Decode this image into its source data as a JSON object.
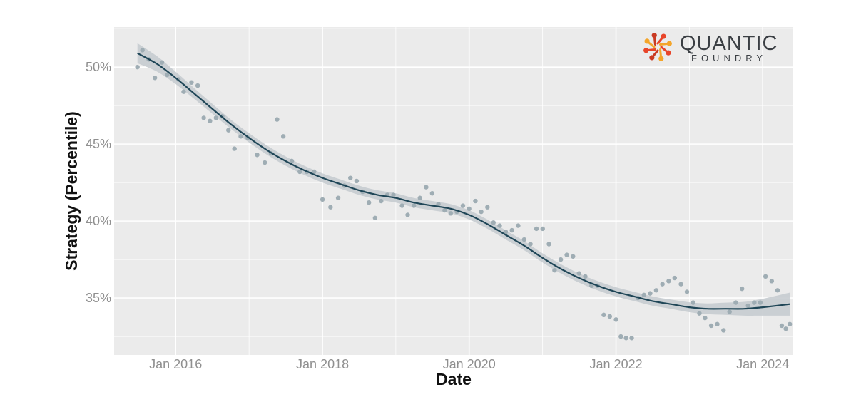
{
  "colors": {
    "panel": "#ebebeb",
    "grid": "#ffffff",
    "points": "#9fadb4",
    "line": "#1f4657",
    "ribbon": "#c7ccd0"
  },
  "logo": {
    "word": "QUANTIC",
    "sub": "FOUNDRY",
    "colors": [
      "#e8452a",
      "#f4a52a",
      "#c93a22"
    ]
  },
  "chart_data": {
    "type": "scatter",
    "title": "",
    "xlabel": "Date",
    "ylabel": "Strategy (Percentile)",
    "xlim": [
      "2015-03-01",
      "2024-06-01"
    ],
    "ylim": [
      31.3,
      52.6
    ],
    "x_ticks": [
      "2016-01-01",
      "2018-01-01",
      "2020-01-01",
      "2022-01-01",
      "2024-01-01"
    ],
    "x_tick_labels": [
      "Jan 2016",
      "Jan 2018",
      "Jan 2020",
      "Jan 2022",
      "Jan 2024"
    ],
    "y_ticks": [
      35,
      40,
      45,
      50
    ],
    "y_tick_labels": [
      "35%",
      "40%",
      "45%",
      "50%"
    ],
    "grid": true,
    "points": [
      [
        "2015-06-25",
        50.0
      ],
      [
        "2015-07-20",
        51.1
      ],
      [
        "2015-08-20",
        50.5
      ],
      [
        "2015-09-20",
        49.3
      ],
      [
        "2015-10-25",
        50.3
      ],
      [
        "2015-11-20",
        49.5
      ],
      [
        "2016-01-15",
        49.2
      ],
      [
        "2016-02-10",
        48.4
      ],
      [
        "2016-03-20",
        49.0
      ],
      [
        "2016-04-20",
        48.8
      ],
      [
        "2016-05-20",
        46.7
      ],
      [
        "2016-06-20",
        46.5
      ],
      [
        "2016-07-20",
        46.7
      ],
      [
        "2016-08-20",
        46.8
      ],
      [
        "2016-09-20",
        45.9
      ],
      [
        "2016-10-20",
        44.7
      ],
      [
        "2016-11-20",
        45.5
      ],
      [
        "2016-12-25",
        45.4
      ],
      [
        "2017-02-10",
        44.3
      ],
      [
        "2017-03-20",
        43.8
      ],
      [
        "2017-04-20",
        44.4
      ],
      [
        "2017-05-20",
        46.6
      ],
      [
        "2017-06-20",
        45.5
      ],
      [
        "2017-08-01",
        43.9
      ],
      [
        "2017-09-10",
        43.2
      ],
      [
        "2017-10-15",
        43.2
      ],
      [
        "2017-11-20",
        43.2
      ],
      [
        "2018-01-01",
        41.4
      ],
      [
        "2018-02-10",
        40.9
      ],
      [
        "2018-03-20",
        41.5
      ],
      [
        "2018-04-20",
        42.3
      ],
      [
        "2018-05-20",
        42.8
      ],
      [
        "2018-06-20",
        42.6
      ],
      [
        "2018-07-20",
        41.9
      ],
      [
        "2018-08-20",
        41.2
      ],
      [
        "2018-09-20",
        40.2
      ],
      [
        "2018-10-20",
        41.3
      ],
      [
        "2018-11-20",
        41.7
      ],
      [
        "2018-12-20",
        41.7
      ],
      [
        "2019-02-01",
        41.0
      ],
      [
        "2019-03-01",
        40.4
      ],
      [
        "2019-04-01",
        41.0
      ],
      [
        "2019-05-01",
        41.5
      ],
      [
        "2019-06-01",
        42.2
      ],
      [
        "2019-07-01",
        41.8
      ],
      [
        "2019-08-01",
        41.1
      ],
      [
        "2019-09-01",
        40.7
      ],
      [
        "2019-10-01",
        40.5
      ],
      [
        "2019-11-01",
        40.6
      ],
      [
        "2019-12-01",
        41.0
      ],
      [
        "2020-01-01",
        40.8
      ],
      [
        "2020-02-01",
        41.3
      ],
      [
        "2020-03-01",
        40.6
      ],
      [
        "2020-04-01",
        40.9
      ],
      [
        "2020-05-01",
        39.9
      ],
      [
        "2020-06-01",
        39.7
      ],
      [
        "2020-07-01",
        39.3
      ],
      [
        "2020-08-01",
        39.4
      ],
      [
        "2020-09-01",
        39.7
      ],
      [
        "2020-10-01",
        38.8
      ],
      [
        "2020-11-01",
        38.5
      ],
      [
        "2020-12-01",
        39.5
      ],
      [
        "2021-01-01",
        39.5
      ],
      [
        "2021-02-01",
        38.5
      ],
      [
        "2021-03-01",
        36.8
      ],
      [
        "2021-04-01",
        37.5
      ],
      [
        "2021-05-01",
        37.8
      ],
      [
        "2021-06-01",
        37.7
      ],
      [
        "2021-07-01",
        36.6
      ],
      [
        "2021-08-01",
        36.4
      ],
      [
        "2021-09-01",
        35.8
      ],
      [
        "2021-10-01",
        35.8
      ],
      [
        "2021-11-01",
        33.9
      ],
      [
        "2021-12-01",
        33.8
      ],
      [
        "2022-01-01",
        33.6
      ],
      [
        "2022-01-25",
        32.5
      ],
      [
        "2022-02-20",
        32.4
      ],
      [
        "2022-03-20",
        32.4
      ],
      [
        "2022-04-20",
        35.0
      ],
      [
        "2022-05-20",
        35.2
      ],
      [
        "2022-06-20",
        35.3
      ],
      [
        "2022-07-20",
        35.5
      ],
      [
        "2022-08-20",
        35.9
      ],
      [
        "2022-09-20",
        36.1
      ],
      [
        "2022-10-20",
        36.3
      ],
      [
        "2022-11-20",
        35.9
      ],
      [
        "2022-12-20",
        35.4
      ],
      [
        "2023-01-20",
        34.7
      ],
      [
        "2023-02-20",
        34.0
      ],
      [
        "2023-03-20",
        33.7
      ],
      [
        "2023-04-20",
        33.2
      ],
      [
        "2023-05-20",
        33.3
      ],
      [
        "2023-06-20",
        32.9
      ],
      [
        "2023-07-20",
        34.1
      ],
      [
        "2023-08-20",
        34.7
      ],
      [
        "2023-09-20",
        35.6
      ],
      [
        "2023-10-20",
        34.5
      ],
      [
        "2023-11-20",
        34.7
      ],
      [
        "2023-12-20",
        34.7
      ],
      [
        "2024-01-15",
        36.4
      ],
      [
        "2024-02-15",
        36.1
      ],
      [
        "2024-03-15",
        35.5
      ],
      [
        "2024-04-05",
        33.2
      ],
      [
        "2024-04-25",
        33.0
      ],
      [
        "2024-05-15",
        33.3
      ]
    ],
    "trend": [
      [
        "2015-06-25",
        50.9
      ],
      [
        "2015-10-01",
        50.2
      ],
      [
        "2016-01-01",
        49.3
      ],
      [
        "2016-04-01",
        48.3
      ],
      [
        "2016-07-01",
        47.3
      ],
      [
        "2016-10-01",
        46.3
      ],
      [
        "2017-01-01",
        45.4
      ],
      [
        "2017-04-01",
        44.6
      ],
      [
        "2017-07-01",
        43.9
      ],
      [
        "2017-10-01",
        43.3
      ],
      [
        "2018-01-01",
        42.8
      ],
      [
        "2018-04-01",
        42.4
      ],
      [
        "2018-07-01",
        42.0
      ],
      [
        "2018-10-01",
        41.7
      ],
      [
        "2019-01-01",
        41.5
      ],
      [
        "2019-04-01",
        41.2
      ],
      [
        "2019-07-01",
        41.0
      ],
      [
        "2019-10-01",
        40.8
      ],
      [
        "2020-01-01",
        40.4
      ],
      [
        "2020-04-01",
        39.8
      ],
      [
        "2020-07-01",
        39.1
      ],
      [
        "2020-10-01",
        38.4
      ],
      [
        "2021-01-01",
        37.6
      ],
      [
        "2021-04-01",
        36.9
      ],
      [
        "2021-07-01",
        36.3
      ],
      [
        "2021-10-01",
        35.8
      ],
      [
        "2022-01-01",
        35.4
      ],
      [
        "2022-04-01",
        35.1
      ],
      [
        "2022-07-01",
        34.8
      ],
      [
        "2022-10-01",
        34.6
      ],
      [
        "2023-01-01",
        34.4
      ],
      [
        "2023-04-01",
        34.3
      ],
      [
        "2023-07-01",
        34.3
      ],
      [
        "2023-10-01",
        34.3
      ],
      [
        "2024-01-01",
        34.4
      ],
      [
        "2024-05-15",
        34.6
      ]
    ],
    "trend_ci_halfwidth": [
      0.65,
      0.5,
      0.4,
      0.35,
      0.32,
      0.3,
      0.3,
      0.3,
      0.3,
      0.3,
      0.3,
      0.3,
      0.3,
      0.3,
      0.3,
      0.3,
      0.3,
      0.3,
      0.3,
      0.3,
      0.3,
      0.3,
      0.3,
      0.3,
      0.3,
      0.3,
      0.3,
      0.3,
      0.3,
      0.3,
      0.32,
      0.35,
      0.4,
      0.45,
      0.55,
      0.75
    ]
  }
}
